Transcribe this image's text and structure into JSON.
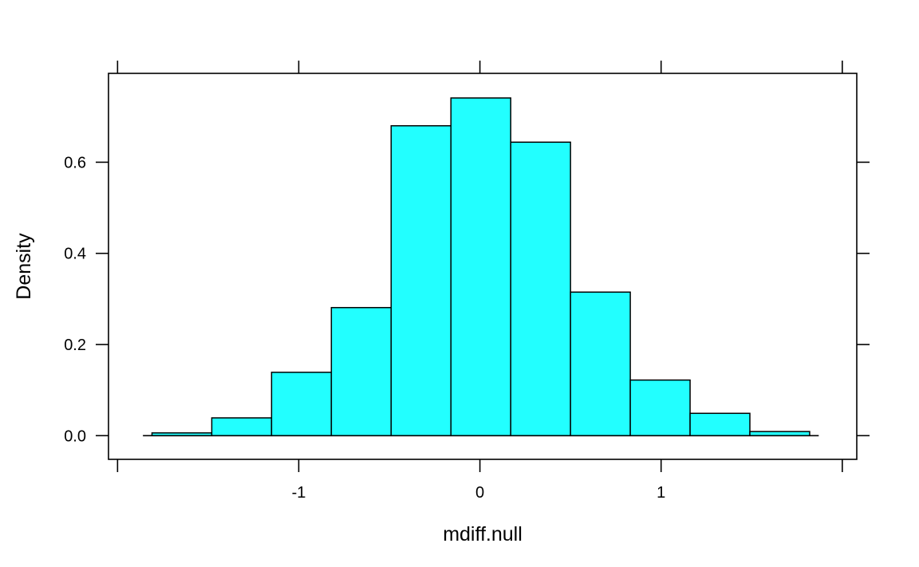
{
  "chart_data": {
    "type": "bar",
    "title": "",
    "xlabel": "mdiff.null",
    "ylabel": "Density",
    "bin_edges": [
      -1.81,
      -1.48,
      -1.15,
      -0.82,
      -0.49,
      -0.16,
      0.17,
      0.5,
      0.83,
      1.16,
      1.49,
      1.82
    ],
    "values": [
      0.006,
      0.039,
      0.139,
      0.281,
      0.68,
      0.741,
      0.644,
      0.315,
      0.122,
      0.049,
      0.009
    ],
    "bar_color": "#22ffff",
    "xlim": [
      -2.05,
      2.08
    ],
    "ylim": [
      -0.052,
      0.795
    ],
    "x_ticks": [
      -2,
      -1,
      0,
      1,
      2
    ],
    "x_tick_labels": [
      "",
      "-1",
      "0",
      "1",
      ""
    ],
    "y_ticks": [
      0.0,
      0.2,
      0.4,
      0.6
    ],
    "y_tick_labels": [
      "0.0",
      "0.2",
      "0.4",
      "0.6"
    ],
    "grid": false,
    "legend": "none"
  }
}
